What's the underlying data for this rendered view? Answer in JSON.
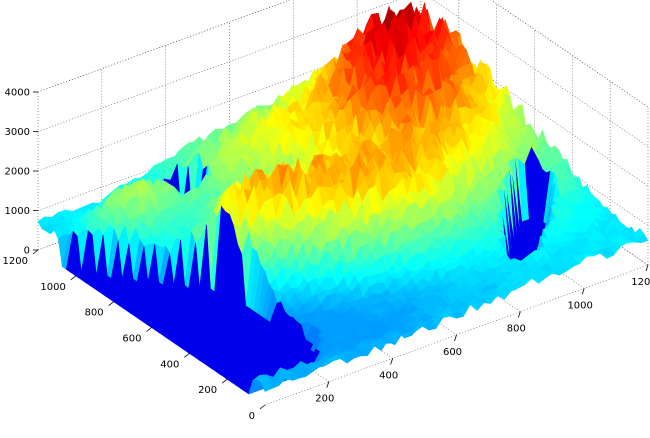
{
  "chart_data": {
    "type": "surface",
    "title": "",
    "xlabel": "",
    "ylabel": "",
    "zlabel": "",
    "colormap": "jet",
    "z_axis": {
      "ticks": [
        0,
        1000,
        2000,
        3000,
        4000
      ],
      "range": [
        0,
        4000
      ]
    },
    "left_axis": {
      "ticks": [
        0,
        200,
        400,
        600,
        800,
        1000,
        1200
      ],
      "range": [
        0,
        1200
      ]
    },
    "right_axis": {
      "ticks": [
        200,
        400,
        600,
        800,
        1000,
        1200
      ],
      "range": [
        0,
        1200
      ]
    },
    "grid": true,
    "features": {
      "water_level": 0,
      "peak_max_elevation": 4000,
      "lakes": [
        "upper-lake",
        "right-lake",
        "coastal-bay"
      ]
    }
  }
}
